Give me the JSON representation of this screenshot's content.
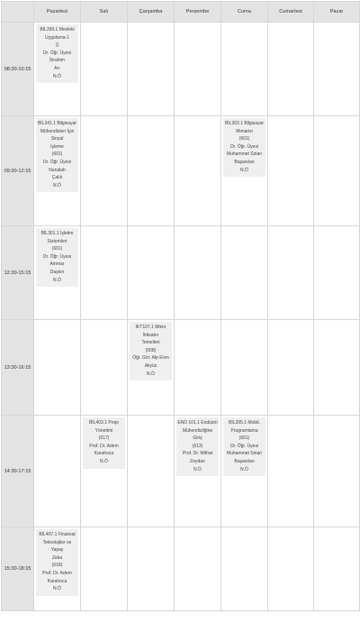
{
  "days": [
    "Pazartesi",
    "Salı",
    "Çarşamba",
    "Perşembe",
    "Cuma",
    "Cumartesi",
    "Pazar"
  ],
  "slots": [
    {
      "time": "08:30-10:15",
      "cells": [
        {
          "lines": [
            "BİL399.1 Mesleki",
            "Uygulama-1",
            "()",
            "Dr. Öğr. Üyesi İbrahim",
            "Arı",
            "N.Ö"
          ]
        },
        null,
        null,
        null,
        null,
        null,
        null
      ]
    },
    {
      "time": "09:30-12:15",
      "cells": [
        {
          "lines": [
            "BİL341.1 Bilgisayar",
            "Mühendisleri İçin Sinyal",
            "İşleme",
            "(601)",
            "Dr. Öğr. Üyesi Nurullah",
            "Çalık",
            "N.Ö"
          ]
        },
        null,
        null,
        null,
        {
          "lines": [
            "BİL303.1 Bilgisayar",
            "Mimarisi",
            "(601)",
            "Dr. Öğr. Üyesi",
            "Muhammet Sinan",
            "Başarslan",
            "N.Ö"
          ]
        },
        null,
        null
      ]
    },
    {
      "time": "12:30-15:15",
      "cells": [
        {
          "lines": [
            "BİL301.1 İşletim",
            "Sistemleri",
            "(601)",
            "Dr. Öğr. Üyesi Ammar",
            "Daşkın",
            "N.Ö"
          ]
        },
        null,
        null,
        null,
        null,
        null,
        null
      ]
    },
    {
      "time": "13:30-16:15",
      "cells": [
        null,
        null,
        {
          "lines": [
            "İKT107.1 Mikro İktisatın",
            "Temelleri",
            "(508)",
            "Öğr. Gör. Alp Eren",
            "Akyüz",
            "N.Ö"
          ]
        },
        null,
        null,
        null,
        null
      ]
    },
    {
      "time": "14:30-17:15",
      "cells": [
        null,
        {
          "lines": [
            "BİL403.1 Proje",
            "Yönetimi",
            "(617)",
            "Prof. Dr. Adem",
            "Karahoca",
            "N.Ö"
          ]
        },
        null,
        {
          "lines": [
            "END 101.1 Endüstri",
            "Mühendisliğine Giriş",
            "(613)",
            "Prof. Dr. Mithat Zeydan",
            "N.Ö"
          ]
        },
        {
          "lines": [
            "BİL395.1 MobiL",
            "Programlama",
            "(601)",
            "Dr. Öğr. Üyesi",
            "Muhammet Sinan",
            "Başarslan",
            "N.Ö"
          ]
        },
        null,
        null
      ]
    },
    {
      "time": "15:30-18:15",
      "cells": [
        {
          "lines": [
            "BİL407.1 Finansal",
            "Teknolojiler ve Yapay",
            "Zeka",
            "(618)",
            "Prof. Dr. Adem",
            "Karahoca",
            "N.Ö"
          ]
        },
        null,
        null,
        null,
        null,
        null,
        null
      ]
    }
  ]
}
